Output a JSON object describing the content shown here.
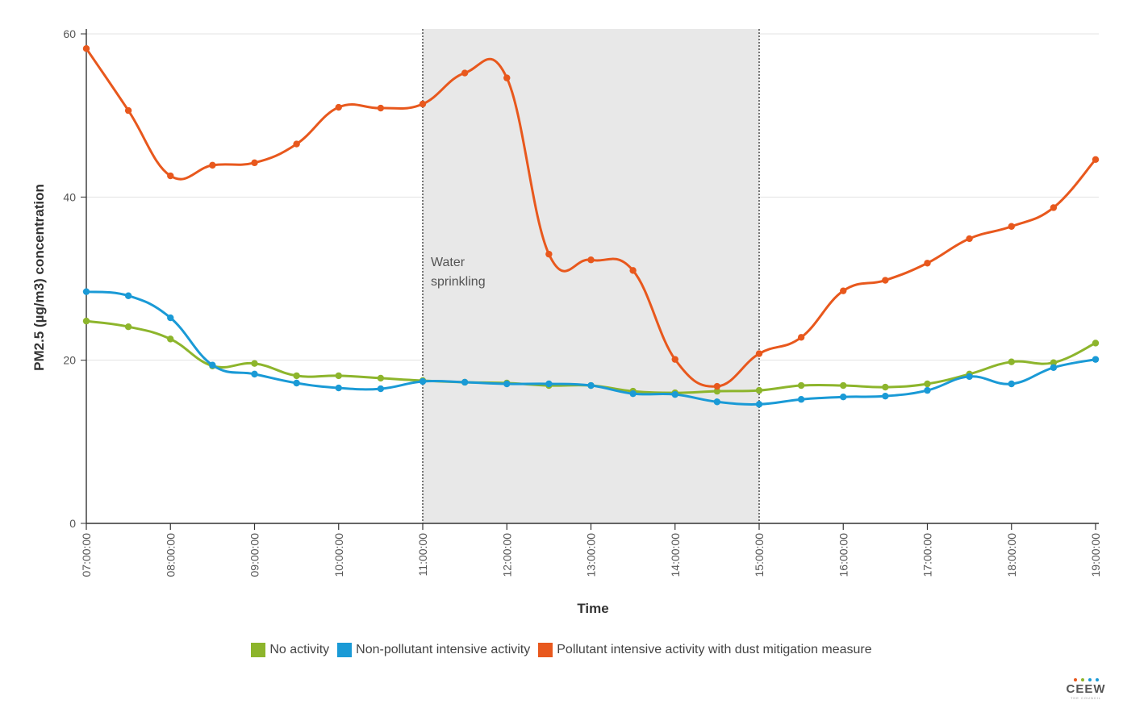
{
  "chart_data": {
    "type": "line",
    "ylabel": "PM2.5 (µg/m3) concentration",
    "xlabel": "Time",
    "ylim": [
      0,
      60
    ],
    "yticks": [
      0,
      20,
      40,
      60
    ],
    "x": [
      "07:00:00",
      "07:30:00",
      "08:00:00",
      "08:30:00",
      "09:00:00",
      "09:30:00",
      "10:00:00",
      "10:30:00",
      "11:00:00",
      "11:30:00",
      "12:00:00",
      "12:30:00",
      "13:00:00",
      "13:30:00",
      "14:00:00",
      "14:30:00",
      "15:00:00",
      "15:30:00",
      "16:00:00",
      "16:30:00",
      "17:00:00",
      "17:30:00",
      "18:00:00",
      "18:30:00",
      "19:00:00"
    ],
    "xticks": [
      "07:00:00",
      "08:00:00",
      "09:00:00",
      "10:00:00",
      "11:00:00",
      "12:00:00",
      "13:00:00",
      "14:00:00",
      "15:00:00",
      "16:00:00",
      "17:00:00",
      "18:00:00",
      "19:00:00"
    ],
    "grid": "horizontal",
    "legend_position": "bottom",
    "series": [
      {
        "name": "No activity",
        "color": "#8db52c",
        "values": [
          24.8,
          24.1,
          22.6,
          19.3,
          19.6,
          18.1,
          18.1,
          17.8,
          17.5,
          17.3,
          17.2,
          16.9,
          16.9,
          16.2,
          16.0,
          16.2,
          16.3,
          16.9,
          16.9,
          16.7,
          17.1,
          18.3,
          19.8,
          19.7,
          22.1
        ]
      },
      {
        "name": "Non-pollutant intensive activity",
        "color": "#1a9ad6",
        "values": [
          28.4,
          27.9,
          25.2,
          19.4,
          18.3,
          17.2,
          16.6,
          16.5,
          17.4,
          17.3,
          17.1,
          17.1,
          16.9,
          15.9,
          15.8,
          14.9,
          14.6,
          15.2,
          15.5,
          15.6,
          16.3,
          18.0,
          17.1,
          19.1,
          20.1
        ]
      },
      {
        "name": "Pollutant intensive activity with dust mitigation measure",
        "color": "#e8581d",
        "values": [
          58.2,
          50.6,
          42.6,
          43.9,
          44.2,
          46.5,
          51.0,
          50.9,
          51.4,
          55.2,
          54.6,
          33.0,
          32.3,
          31.0,
          20.1,
          16.8,
          20.8,
          22.8,
          28.5,
          29.8,
          31.9,
          34.9,
          36.4,
          38.7,
          44.6
        ]
      }
    ],
    "annotations": [
      {
        "type": "band",
        "x_start": "11:00:00",
        "x_end": "15:00:00",
        "label_lines": [
          "Water",
          "sprinkling"
        ]
      }
    ]
  },
  "logo": {
    "text": "CEEW",
    "subtext": "THE COUNCIL",
    "dot_colors": [
      "#e8581d",
      "#8db52c",
      "#1a9ad6",
      "#1a9ad6"
    ]
  }
}
